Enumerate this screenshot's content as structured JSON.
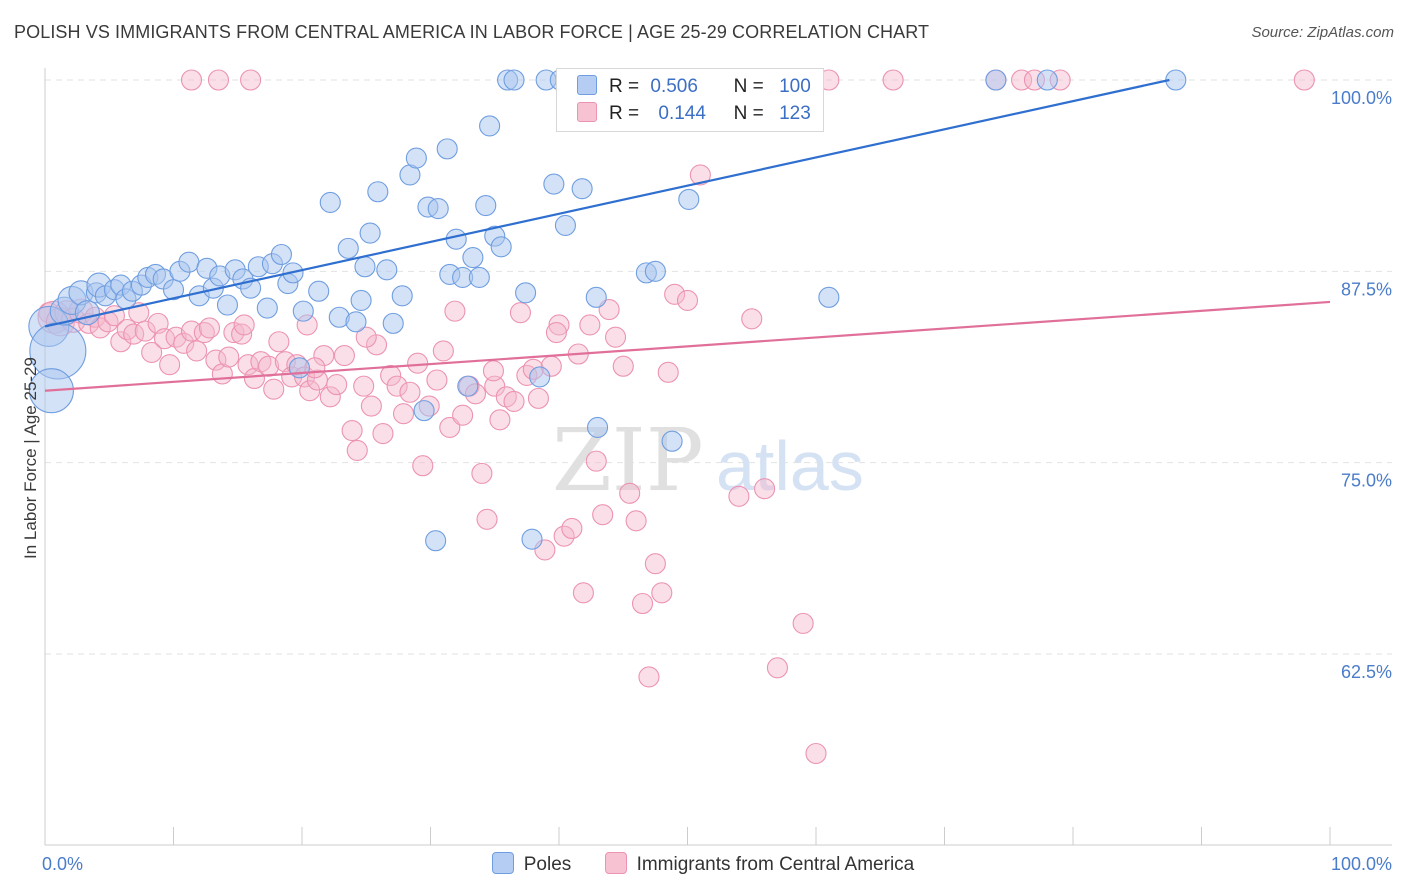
{
  "title": "POLISH VS IMMIGRANTS FROM CENTRAL AMERICA IN LABOR FORCE | AGE 25-29 CORRELATION CHART",
  "source": "Source: ZipAtlas.com",
  "watermark": {
    "zip": "ZIP",
    "atlas": "atlas"
  },
  "legend": {
    "poles": {
      "r_label": "R =",
      "r_value": "0.506",
      "n_label": "N =",
      "n_value": "100"
    },
    "immigrants": {
      "r_label": "R =",
      "r_value": "0.144",
      "n_label": "N =",
      "n_value": "123"
    }
  },
  "bottom_legend": {
    "poles": "Poles",
    "immigrants": "Immigrants from Central America"
  },
  "colors": {
    "poles_fill": "#a9c6f0",
    "poles_stroke": "#6f9ee0",
    "poles_line": "#2f6fcf",
    "imm_fill": "#f5b8cc",
    "imm_stroke": "#ec93b2",
    "imm_line": "#e0709a",
    "grid": "#e2e2e2",
    "axis_text": "#4a7cc9"
  },
  "chart_data": {
    "type": "scatter",
    "title": "POLISH VS IMMIGRANTS FROM CENTRAL AMERICA IN LABOR FORCE | AGE 25-29 CORRELATION CHART",
    "xlabel": "",
    "ylabel": "In Labor Force | Age 25-29",
    "xlim": [
      0,
      100
    ],
    "ylim": [
      50,
      102.5
    ],
    "x_tick_labels": [
      "0.0%",
      "100.0%"
    ],
    "y_ticks": [
      62.5,
      75.0,
      87.5,
      100.0
    ],
    "y_tick_labels": [
      "62.5%",
      "75.0%",
      "87.5%",
      "100.0%"
    ],
    "grid": true,
    "series": [
      {
        "name": "Poles",
        "r": 0.506,
        "n": 100,
        "trend": {
          "x": [
            0,
            87.5
          ],
          "y": [
            83.9,
            100.0
          ]
        },
        "points": [
          [
            0.3,
            83.9,
            20
          ],
          [
            1.0,
            82.3,
            28
          ],
          [
            0.5,
            79.7,
            22
          ],
          [
            1.5,
            84.9,
            14
          ],
          [
            2.1,
            85.6,
            14
          ],
          [
            2.8,
            86.1,
            12
          ],
          [
            3.3,
            84.8,
            12
          ],
          [
            4.0,
            86.1,
            10
          ],
          [
            4.2,
            86.6,
            12
          ],
          [
            4.7,
            85.9,
            10
          ],
          [
            5.4,
            86.3,
            10
          ],
          [
            5.9,
            86.6,
            10
          ],
          [
            6.3,
            85.7,
            10
          ],
          [
            6.8,
            86.2,
            10
          ],
          [
            7.5,
            86.6,
            10
          ],
          [
            8.0,
            87.1,
            10
          ],
          [
            8.6,
            87.3,
            10
          ],
          [
            9.2,
            87.0,
            10
          ],
          [
            10.0,
            86.3,
            10
          ],
          [
            10.5,
            87.5,
            10
          ],
          [
            11.2,
            88.1,
            10
          ],
          [
            12.0,
            85.9,
            10
          ],
          [
            12.6,
            87.7,
            10
          ],
          [
            13.1,
            86.4,
            10
          ],
          [
            13.6,
            87.2,
            10
          ],
          [
            14.2,
            85.3,
            10
          ],
          [
            14.8,
            87.6,
            10
          ],
          [
            15.4,
            87.0,
            10
          ],
          [
            16.0,
            86.4,
            10
          ],
          [
            16.6,
            87.8,
            10
          ],
          [
            17.3,
            85.1,
            10
          ],
          [
            17.7,
            88.0,
            10
          ],
          [
            18.4,
            88.6,
            10
          ],
          [
            18.9,
            86.7,
            10
          ],
          [
            19.3,
            87.4,
            10
          ],
          [
            20.1,
            84.9,
            10
          ],
          [
            21.3,
            86.2,
            10
          ],
          [
            22.2,
            92.0,
            10
          ],
          [
            22.9,
            84.5,
            10
          ],
          [
            23.6,
            89.0,
            10
          ],
          [
            24.2,
            84.2,
            10
          ],
          [
            24.6,
            85.6,
            10
          ],
          [
            24.9,
            87.8,
            10
          ],
          [
            25.3,
            90.0,
            10
          ],
          [
            25.9,
            92.7,
            10
          ],
          [
            26.6,
            87.6,
            10
          ],
          [
            27.1,
            84.1,
            10
          ],
          [
            27.8,
            85.9,
            10
          ],
          [
            28.4,
            93.8,
            10
          ],
          [
            28.9,
            94.9,
            10
          ],
          [
            29.8,
            91.7,
            10
          ],
          [
            30.6,
            91.6,
            10
          ],
          [
            31.3,
            95.5,
            10
          ],
          [
            31.5,
            87.3,
            10
          ],
          [
            32.0,
            89.6,
            10
          ],
          [
            32.5,
            87.1,
            10
          ],
          [
            32.9,
            80.0,
            10
          ],
          [
            33.3,
            88.4,
            10
          ],
          [
            33.8,
            87.1,
            10
          ],
          [
            34.3,
            91.8,
            10
          ],
          [
            34.6,
            97.0,
            10
          ],
          [
            35.0,
            89.8,
            10
          ],
          [
            35.5,
            89.1,
            10
          ],
          [
            36.0,
            100.0,
            10
          ],
          [
            36.5,
            100.0,
            10
          ],
          [
            37.4,
            86.1,
            10
          ],
          [
            37.9,
            70.0,
            10
          ],
          [
            38.5,
            80.6,
            10
          ],
          [
            39.0,
            100.0,
            10
          ],
          [
            39.6,
            93.2,
            10
          ],
          [
            40.1,
            100.0,
            10
          ],
          [
            40.5,
            90.5,
            10
          ],
          [
            41.4,
            100.0,
            10
          ],
          [
            41.8,
            92.9,
            10
          ],
          [
            42.4,
            100.0,
            10
          ],
          [
            42.9,
            85.8,
            10
          ],
          [
            43.4,
            100.0,
            10
          ],
          [
            44.0,
            100.0,
            10
          ],
          [
            45.0,
            100.0,
            10
          ],
          [
            46.0,
            100.0,
            10
          ],
          [
            46.8,
            87.4,
            10
          ],
          [
            47.5,
            87.5,
            10
          ],
          [
            48.1,
            100.0,
            10
          ],
          [
            48.8,
            76.4,
            10
          ],
          [
            49.5,
            100.0,
            10
          ],
          [
            50.1,
            92.2,
            10
          ],
          [
            50.7,
            100.0,
            10
          ],
          [
            51.3,
            100.0,
            10
          ],
          [
            54.0,
            100.0,
            10
          ],
          [
            55.5,
            100.0,
            10
          ],
          [
            56.4,
            100.0,
            10
          ],
          [
            58.1,
            100.0,
            10
          ],
          [
            61.0,
            85.8,
            10
          ],
          [
            74.0,
            100.0,
            10
          ],
          [
            78.0,
            100.0,
            10
          ],
          [
            88.0,
            100.0,
            10
          ],
          [
            29.5,
            78.4,
            10
          ],
          [
            30.4,
            69.9,
            10
          ],
          [
            43.0,
            77.3,
            10
          ],
          [
            19.8,
            81.2,
            10
          ]
        ]
      },
      {
        "name": "Immigrants from Central America",
        "r": 0.144,
        "n": 123,
        "trend": {
          "x": [
            0,
            100
          ],
          "y": [
            79.7,
            85.5
          ]
        },
        "points": [
          [
            0.3,
            84.8,
            10
          ],
          [
            0.7,
            84.5,
            16
          ],
          [
            1.2,
            84.2,
            14
          ],
          [
            1.7,
            84.8,
            12
          ],
          [
            2.2,
            84.3,
            12
          ],
          [
            2.8,
            84.9,
            12
          ],
          [
            3.4,
            84.1,
            10
          ],
          [
            3.9,
            84.5,
            10
          ],
          [
            4.3,
            83.8,
            10
          ],
          [
            4.9,
            84.2,
            10
          ],
          [
            5.4,
            84.6,
            10
          ],
          [
            5.9,
            82.9,
            10
          ],
          [
            6.4,
            83.7,
            10
          ],
          [
            6.9,
            83.4,
            10
          ],
          [
            7.3,
            84.8,
            10
          ],
          [
            7.8,
            83.6,
            10
          ],
          [
            8.3,
            82.2,
            10
          ],
          [
            8.8,
            84.1,
            10
          ],
          [
            9.3,
            83.1,
            10
          ],
          [
            9.7,
            81.4,
            10
          ],
          [
            10.2,
            83.2,
            10
          ],
          [
            10.8,
            82.8,
            10
          ],
          [
            11.4,
            83.6,
            10
          ],
          [
            11.8,
            82.3,
            10
          ],
          [
            12.4,
            83.5,
            10
          ],
          [
            12.8,
            83.8,
            10
          ],
          [
            13.3,
            81.7,
            10
          ],
          [
            13.8,
            80.8,
            10
          ],
          [
            14.3,
            81.9,
            10
          ],
          [
            14.7,
            83.5,
            10
          ],
          [
            15.3,
            83.4,
            10
          ],
          [
            15.8,
            81.4,
            10
          ],
          [
            16.3,
            80.5,
            10
          ],
          [
            16.8,
            81.6,
            10
          ],
          [
            17.4,
            81.3,
            10
          ],
          [
            17.8,
            79.8,
            10
          ],
          [
            18.2,
            82.9,
            10
          ],
          [
            18.7,
            81.6,
            10
          ],
          [
            19.2,
            80.6,
            10
          ],
          [
            19.6,
            81.4,
            10
          ],
          [
            20.2,
            80.6,
            10
          ],
          [
            20.6,
            79.7,
            10
          ],
          [
            21.2,
            80.4,
            10
          ],
          [
            21.7,
            82.0,
            10
          ],
          [
            22.2,
            79.3,
            10
          ],
          [
            22.7,
            80.1,
            10
          ],
          [
            23.3,
            82.0,
            10
          ],
          [
            23.9,
            77.1,
            10
          ],
          [
            24.3,
            75.8,
            10
          ],
          [
            24.8,
            80.0,
            10
          ],
          [
            25.4,
            78.7,
            10
          ],
          [
            25.8,
            82.7,
            10
          ],
          [
            26.3,
            76.9,
            10
          ],
          [
            26.9,
            80.7,
            10
          ],
          [
            27.4,
            80.0,
            10
          ],
          [
            27.9,
            78.2,
            10
          ],
          [
            28.4,
            79.6,
            10
          ],
          [
            29.0,
            81.5,
            10
          ],
          [
            29.4,
            74.8,
            10
          ],
          [
            29.9,
            78.7,
            10
          ],
          [
            30.5,
            80.4,
            10
          ],
          [
            31.0,
            82.3,
            10
          ],
          [
            31.5,
            77.3,
            10
          ],
          [
            31.9,
            84.9,
            10
          ],
          [
            32.5,
            78.1,
            10
          ],
          [
            33.0,
            80.0,
            10
          ],
          [
            33.5,
            79.5,
            10
          ],
          [
            34.0,
            74.3,
            10
          ],
          [
            34.4,
            71.3,
            10
          ],
          [
            35.0,
            80.0,
            10
          ],
          [
            35.4,
            77.8,
            10
          ],
          [
            35.9,
            79.3,
            10
          ],
          [
            36.5,
            79.0,
            10
          ],
          [
            37.0,
            84.8,
            10
          ],
          [
            37.5,
            80.7,
            10
          ],
          [
            38.0,
            81.1,
            10
          ],
          [
            38.4,
            79.2,
            10
          ],
          [
            38.9,
            69.3,
            10
          ],
          [
            39.4,
            81.3,
            10
          ],
          [
            40.0,
            84.0,
            10
          ],
          [
            40.4,
            70.2,
            10
          ],
          [
            41.0,
            70.7,
            10
          ],
          [
            41.5,
            82.1,
            10
          ],
          [
            41.9,
            66.5,
            10
          ],
          [
            42.4,
            84.0,
            10
          ],
          [
            42.9,
            75.1,
            10
          ],
          [
            43.4,
            71.6,
            10
          ],
          [
            43.9,
            85.0,
            10
          ],
          [
            44.4,
            83.2,
            10
          ],
          [
            45.0,
            81.3,
            10
          ],
          [
            45.5,
            73.0,
            10
          ],
          [
            46.0,
            71.2,
            10
          ],
          [
            46.5,
            65.8,
            10
          ],
          [
            47.0,
            61.0,
            10
          ],
          [
            47.5,
            68.4,
            10
          ],
          [
            48.0,
            66.5,
            10
          ],
          [
            48.5,
            80.9,
            10
          ],
          [
            49.0,
            86.0,
            10
          ],
          [
            50.0,
            85.6,
            10
          ],
          [
            51.0,
            93.8,
            10
          ],
          [
            54.0,
            72.8,
            10
          ],
          [
            55.0,
            84.4,
            10
          ],
          [
            56.0,
            73.3,
            10
          ],
          [
            57.0,
            61.6,
            10
          ],
          [
            59.0,
            64.5,
            10
          ],
          [
            60.0,
            56.0,
            10
          ],
          [
            20.4,
            84.0,
            10
          ],
          [
            11.4,
            100.0,
            10
          ],
          [
            13.5,
            100.0,
            10
          ],
          [
            16.0,
            100.0,
            10
          ],
          [
            58.0,
            100.0,
            10
          ],
          [
            61.0,
            100.0,
            10
          ],
          [
            66.0,
            100.0,
            10
          ],
          [
            74.0,
            100.0,
            10
          ],
          [
            76.0,
            100.0,
            10
          ],
          [
            77.0,
            100.0,
            10
          ],
          [
            79.0,
            100.0,
            10
          ],
          [
            98.0,
            100.0,
            10
          ],
          [
            34.9,
            81.0,
            10
          ],
          [
            39.8,
            83.5,
            10
          ],
          [
            25.0,
            83.2,
            10
          ],
          [
            21.0,
            81.2,
            10
          ],
          [
            15.5,
            84.0,
            10
          ]
        ]
      }
    ]
  }
}
